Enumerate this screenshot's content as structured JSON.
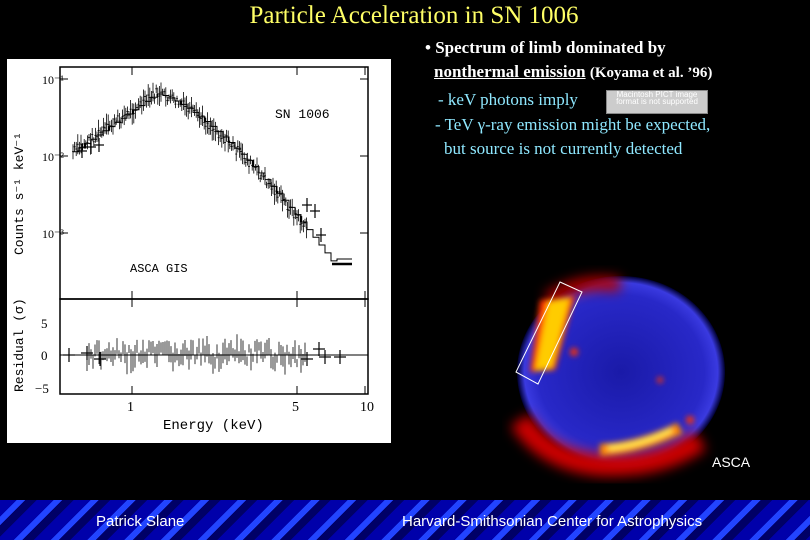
{
  "slide": {
    "title": "Particle Acceleration in SN 1006",
    "bullet_main": "• Spectrum of limb dominated by",
    "bullet_main_line2": "nonthermal emission",
    "bullet_citation": "(Koyama et al. ’96)",
    "sub_bullet_1": "- keV photons imply",
    "sub_bullet_2": "- TeV γ-ray emission might be expected,",
    "sub_bullet_3": "but source is not currently detected",
    "pict_placeholder": "Macintosh PICT image format is not supported",
    "image_caption": "ASCA",
    "footer_left": "Patrick Slane",
    "footer_right": "Harvard-Smithsonian Center for Astrophysics"
  },
  "figure": {
    "object_label": "SN 1006",
    "instrument_label": "ASCA GIS",
    "top_ylabel": "Counts s⁻¹ keV⁻¹",
    "bottom_ylabel": "Residual (σ)",
    "xlabel": "Energy (keV)",
    "top_yticks": [
      "10⁻¹",
      "10⁻²",
      "10⁻³"
    ],
    "bottom_yticks": [
      "5",
      "0",
      "−5"
    ],
    "xticks": [
      "1",
      "5",
      "10"
    ]
  },
  "colors": {
    "title": "#ffff66",
    "cyan_text": "#8fe8ff",
    "background": "#000000"
  }
}
